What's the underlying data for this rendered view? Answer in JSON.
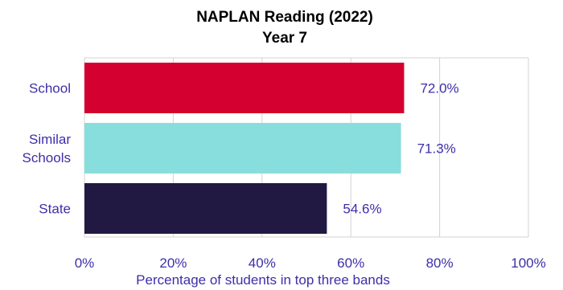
{
  "chart_data": {
    "type": "bar",
    "orientation": "horizontal",
    "title": "NAPLAN Reading (2022)",
    "subtitle": "Year 7",
    "categories": [
      "School",
      "Similar\nSchools",
      "State"
    ],
    "values": [
      72.0,
      71.3,
      54.6
    ],
    "value_labels": [
      "72.0%",
      "71.3%",
      "54.6%"
    ],
    "bar_colors": [
      "#d4002f",
      "#88dddd",
      "#221943"
    ],
    "xlabel": "Percentage of students in top three bands",
    "ylabel": "",
    "xlim": [
      0,
      100
    ],
    "xticks": [
      0,
      20,
      40,
      60,
      80,
      100
    ],
    "xtick_labels": [
      "0%",
      "20%",
      "40%",
      "60%",
      "80%",
      "100%"
    ],
    "grid": "vertical",
    "legend": "none",
    "text_color": "#3d2ea8",
    "grid_color": "#d3d3d3"
  }
}
